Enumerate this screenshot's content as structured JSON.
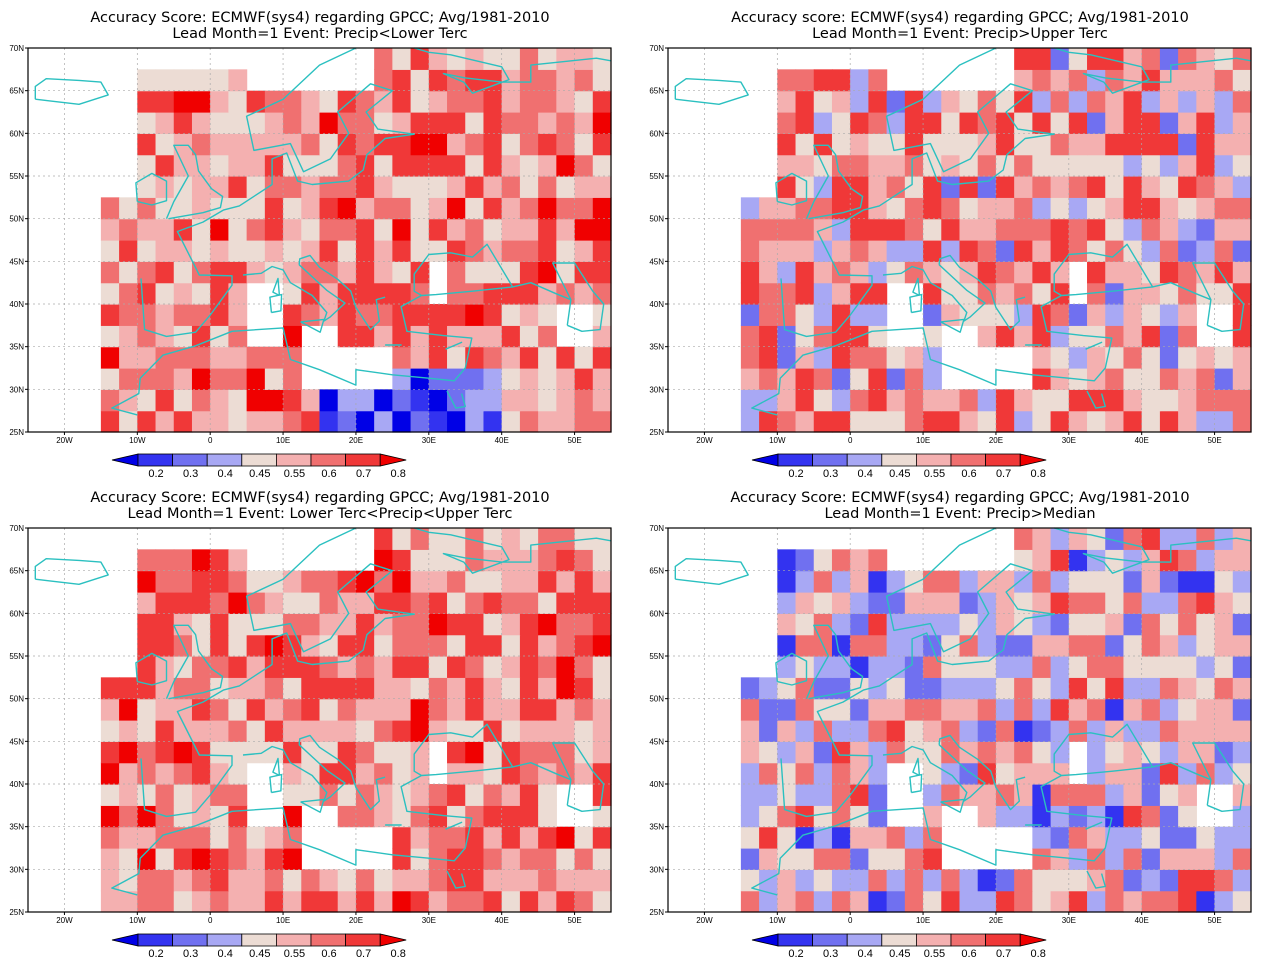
{
  "common": {
    "lon_ticks": [
      "20W",
      "10W",
      "0",
      "10E",
      "20E",
      "30E",
      "40E",
      "50E"
    ],
    "lat_ticks": [
      "25N",
      "30N",
      "35N",
      "40N",
      "45N",
      "50N",
      "55N",
      "60N",
      "65N",
      "70N"
    ],
    "colorbar": {
      "labels": [
        "0.2",
        "0.3",
        "0.4",
        "0.45",
        "0.55",
        "0.6",
        "0.7",
        "0.8"
      ],
      "colors": [
        "#0000e6",
        "#3333f0",
        "#7070f0",
        "#a8a8f4",
        "#ecdcd4",
        "#f4b0b0",
        "#f07070",
        "#f03838",
        "#f00000"
      ]
    },
    "coast_color": "#2bc0c0"
  },
  "panels": [
    {
      "title1": "Accuracy Score: ECMWF(sys4) regarding GPCC; Avg/1981-2010",
      "title2": "Lead Month=1 Event: Precip<Lower Terc",
      "bias": "red"
    },
    {
      "title1": "Accuracy score: ECMWF(sys4) regarding GPCC; Avg/1981-2010",
      "title2": "Lead Month=1 Event: Precip>Upper Terc",
      "bias": "mixed"
    },
    {
      "title1": "Accuracy Score: ECMWF(sys4) regarding GPCC; Avg/1981-2010",
      "title2": "Lead Month=1 Event: Lower Terc<Precip<Upper Terc",
      "bias": "red"
    },
    {
      "title1": "Accuracy Score: ECMWF(sys4) regarding GPCC; Avg/1981-2010",
      "title2": "Lead Month=1 Event: Precip>Median",
      "bias": "blue"
    }
  ]
}
